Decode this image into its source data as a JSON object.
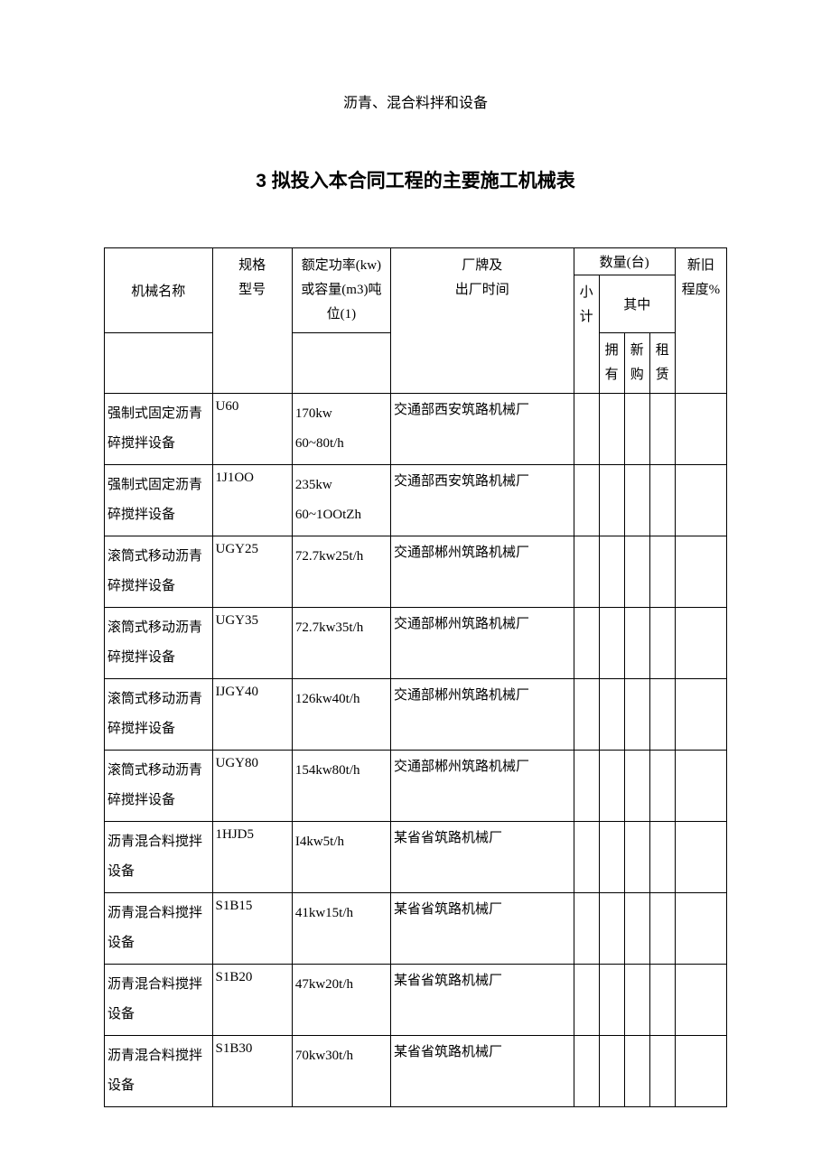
{
  "subtitle": "沥青、混合料拌和设备",
  "main_title": "3 拟投入本合同工程的主要施工机械表",
  "headers": {
    "name": "机械名称",
    "spec_line1": "规格",
    "spec_line2": "型号",
    "power_line1": "额定功率(kw)",
    "power_line2": "或容量(m3)吨",
    "power_line3": "位(1)",
    "mfr_line1": "厂牌及",
    "mfr_line2": "出厂时间",
    "qty_group": "数量(台)",
    "subtotal_line1": "小",
    "subtotal_line2": "计",
    "among": "其中",
    "own_line1": "拥",
    "own_line2": "有",
    "buy_line1": "新",
    "buy_line2": "购",
    "rent_line1": "租",
    "rent_line2": "赁",
    "cond_line1": "新旧",
    "cond_line2": "程度%"
  },
  "rows": [
    {
      "name_l1": "强制式固定沥青",
      "name_l2": "碎搅拌设备",
      "spec": "U60",
      "power_l1": "170kw",
      "power_l2": "60~80t/h",
      "mfr": "交通部西安筑路机械厂"
    },
    {
      "name_l1": "强制式固定沥青",
      "name_l2": "碎搅拌设备",
      "spec": "1J1OO",
      "power_l1": "235kw",
      "power_l2": "60~1OOtZh",
      "mfr": "交通部西安筑路机械厂"
    },
    {
      "name_l1": "滚筒式移动沥青",
      "name_l2": "碎搅拌设备",
      "spec": "UGY25",
      "power_l1": "72.7kw25t/h",
      "power_l2": "",
      "mfr": "交通部郴州筑路机械厂"
    },
    {
      "name_l1": "滚筒式移动沥青",
      "name_l2": "碎搅拌设备",
      "spec": "UGY35",
      "power_l1": "72.7kw35t/h",
      "power_l2": "",
      "mfr": "交通部郴州筑路机械厂"
    },
    {
      "name_l1": "滚筒式移动沥青",
      "name_l2": "碎搅拌设备",
      "spec": "IJGY40",
      "power_l1": "126kw40t/h",
      "power_l2": "",
      "mfr": "交通部郴州筑路机械厂"
    },
    {
      "name_l1": "滚筒式移动沥青",
      "name_l2": "碎搅拌设备",
      "spec": "UGY80",
      "power_l1": "154kw80t/h",
      "power_l2": "",
      "mfr": "交通部郴州筑路机械厂"
    },
    {
      "name_l1": "沥青混合料搅拌",
      "name_l2": "设备",
      "spec": "1HJD5",
      "power_l1": "I4kw5t/h",
      "power_l2": "",
      "mfr": "某省省筑路机械厂"
    },
    {
      "name_l1": "沥青混合料搅拌",
      "name_l2": "设备",
      "spec": "S1B15",
      "power_l1": "41kw15t/h",
      "power_l2": "",
      "mfr": "某省省筑路机械厂"
    },
    {
      "name_l1": "沥青混合料搅拌",
      "name_l2": "设备",
      "spec": "S1B20",
      "power_l1": "47kw20t/h",
      "power_l2": "",
      "mfr": "某省省筑路机械厂"
    },
    {
      "name_l1": "沥青混合料搅拌",
      "name_l2": "设备",
      "spec": "S1B30",
      "power_l1": "70kw30t/h",
      "power_l2": "",
      "mfr": "某省省筑路机械厂"
    }
  ]
}
